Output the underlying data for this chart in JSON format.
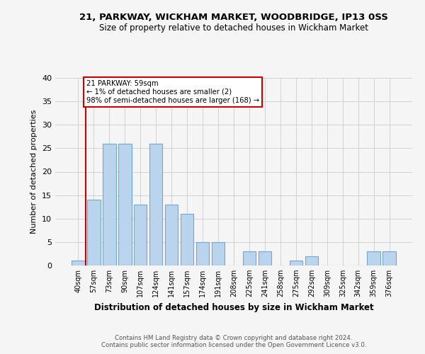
{
  "title": "21, PARKWAY, WICKHAM MARKET, WOODBRIDGE, IP13 0SS",
  "subtitle": "Size of property relative to detached houses in Wickham Market",
  "xlabel": "Distribution of detached houses by size in Wickham Market",
  "ylabel": "Number of detached properties",
  "footer_line1": "Contains HM Land Registry data © Crown copyright and database right 2024.",
  "footer_line2": "Contains public sector information licensed under the Open Government Licence v3.0.",
  "categories": [
    "40sqm",
    "57sqm",
    "73sqm",
    "90sqm",
    "107sqm",
    "124sqm",
    "141sqm",
    "157sqm",
    "174sqm",
    "191sqm",
    "208sqm",
    "225sqm",
    "241sqm",
    "258sqm",
    "275sqm",
    "292sqm",
    "309sqm",
    "325sqm",
    "342sqm",
    "359sqm",
    "376sqm"
  ],
  "values": [
    1,
    14,
    26,
    26,
    13,
    26,
    13,
    11,
    5,
    5,
    0,
    3,
    3,
    0,
    1,
    2,
    0,
    0,
    0,
    3,
    3
  ],
  "bar_color": "#bad4ee",
  "bar_edgecolor": "#6aaad4",
  "highlight_bar_idx": 1,
  "highlight_color": "#cc0000",
  "annotation_line1": "21 PARKWAY: 59sqm",
  "annotation_line2": "← 1% of detached houses are smaller (2)",
  "annotation_line3": "98% of semi-detached houses are larger (168) →",
  "ylim": [
    0,
    40
  ],
  "yticks": [
    0,
    5,
    10,
    15,
    20,
    25,
    30,
    35,
    40
  ],
  "grid_color": "#cccccc",
  "background_color": "#f5f5f5"
}
